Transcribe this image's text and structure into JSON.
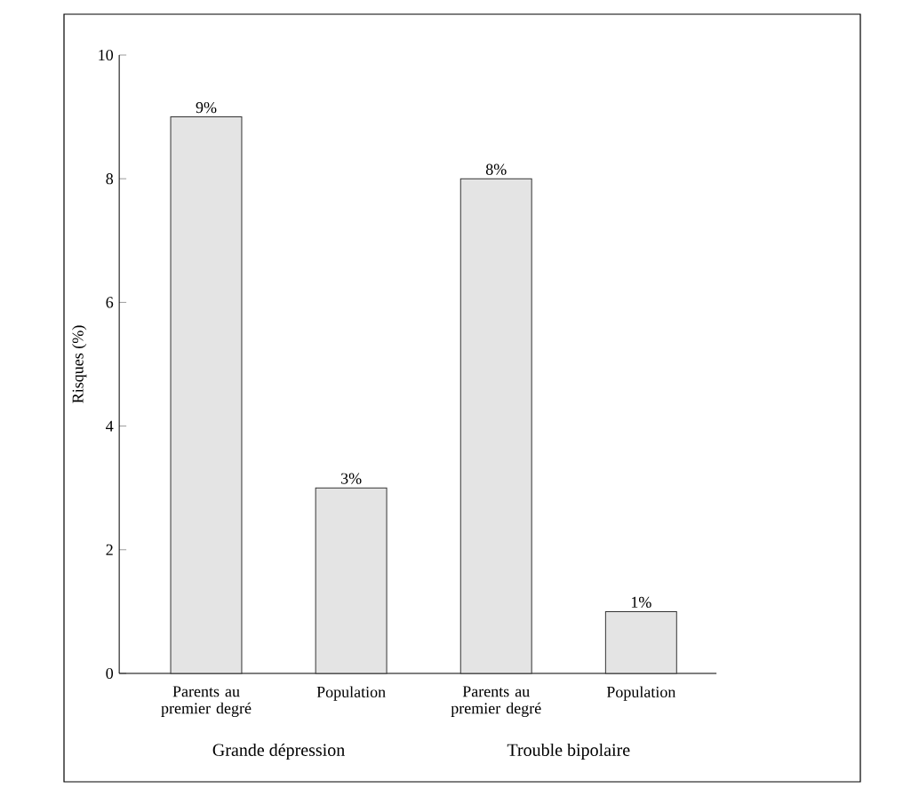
{
  "chart_data": {
    "type": "bar",
    "ylabel": "Risques (%)",
    "categories": [
      "Parents au premier degré",
      "Population",
      "Parents au premier degré",
      "Population"
    ],
    "values": [
      9,
      3,
      8,
      1
    ],
    "value_labels": [
      "9%",
      "3%",
      "8%",
      "1%"
    ],
    "color": "#e4e4e4",
    "ylim": [
      0,
      10
    ],
    "yticks": [
      0,
      2,
      4,
      6,
      8,
      10
    ],
    "annotations": [
      "Grande dépression",
      "Trouble bipolaire"
    ]
  }
}
